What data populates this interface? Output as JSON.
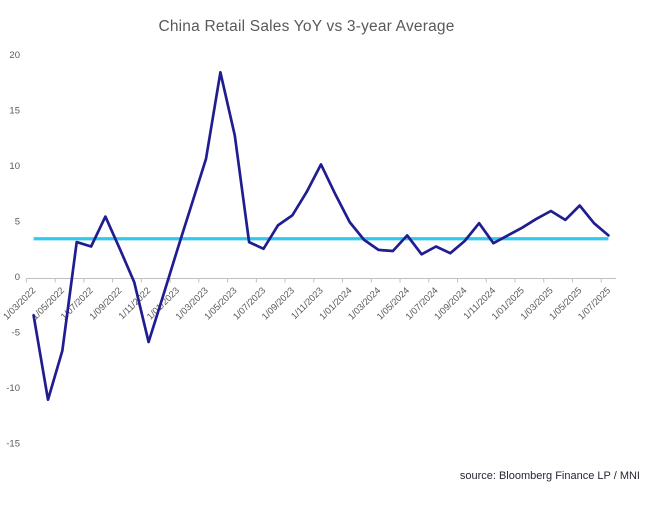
{
  "title": "China Retail Sales YoY vs 3-year Average",
  "source_note": "source: Bloomberg Finance LP / MNI",
  "colors": {
    "series_line": "#201d90",
    "average_line": "#31c9ec",
    "axis": "#bfbfbf",
    "tick_text": "#595959",
    "title_text": "#595959",
    "source_text": "#262635"
  },
  "chart_data": {
    "type": "line",
    "title": "China Retail Sales YoY vs 3-year Average",
    "x": [
      "1/03/2022",
      "1/04/2022",
      "1/05/2022",
      "1/06/2022",
      "1/07/2022",
      "1/08/2022",
      "1/09/2022",
      "1/10/2022",
      "1/11/2022",
      "1/12/2022",
      "1/01/2023",
      "1/02/2023",
      "1/03/2023",
      "1/04/2023",
      "1/05/2023",
      "1/06/2023",
      "1/07/2023",
      "1/08/2023",
      "1/09/2023",
      "1/10/2023",
      "1/11/2023",
      "1/12/2023",
      "1/01/2024",
      "1/02/2024",
      "1/03/2024",
      "1/04/2024",
      "1/05/2024",
      "1/06/2024",
      "1/07/2024",
      "1/08/2024",
      "1/09/2024",
      "1/10/2024",
      "1/11/2024",
      "1/12/2024",
      "1/01/2025",
      "1/02/2025",
      "1/03/2025",
      "1/04/2025",
      "1/05/2025",
      "1/06/2025",
      "1/07/2025"
    ],
    "series": [
      {
        "name": "China Retail Sales YoY",
        "color": "#201d90",
        "values": [
          -3.5,
          -11.1,
          -6.7,
          3.1,
          2.7,
          5.4,
          2.5,
          -0.5,
          -5.9,
          -1.8,
          2.4,
          6.5,
          10.6,
          18.4,
          12.7,
          3.1,
          2.5,
          4.6,
          5.5,
          7.6,
          10.1,
          7.4,
          4.9,
          3.3,
          2.4,
          2.3,
          3.7,
          2.0,
          2.7,
          2.1,
          3.2,
          4.8,
          3.0,
          3.7,
          4.4,
          5.2,
          5.9,
          5.1,
          6.4,
          4.8,
          3.7
        ]
      },
      {
        "name": "3-year Average",
        "color": "#31c9ec",
        "constant_value": 3.4
      }
    ],
    "x_tick_labels": [
      "1/03/2022",
      "1/05/2022",
      "1/07/2022",
      "1/09/2022",
      "1/11/2022",
      "1/01/2023",
      "1/03/2023",
      "1/05/2023",
      "1/07/2023",
      "1/09/2023",
      "1/11/2023",
      "1/01/2024",
      "1/03/2024",
      "1/05/2024",
      "1/07/2024",
      "1/09/2024",
      "1/11/2024",
      "1/01/2025",
      "1/03/2025",
      "1/05/2025",
      "1/07/2025"
    ],
    "y_ticks": [
      20,
      15,
      10,
      5,
      0,
      -5,
      -10,
      -15
    ],
    "ylim": [
      -15,
      20
    ],
    "grid": false,
    "legend": "none"
  }
}
